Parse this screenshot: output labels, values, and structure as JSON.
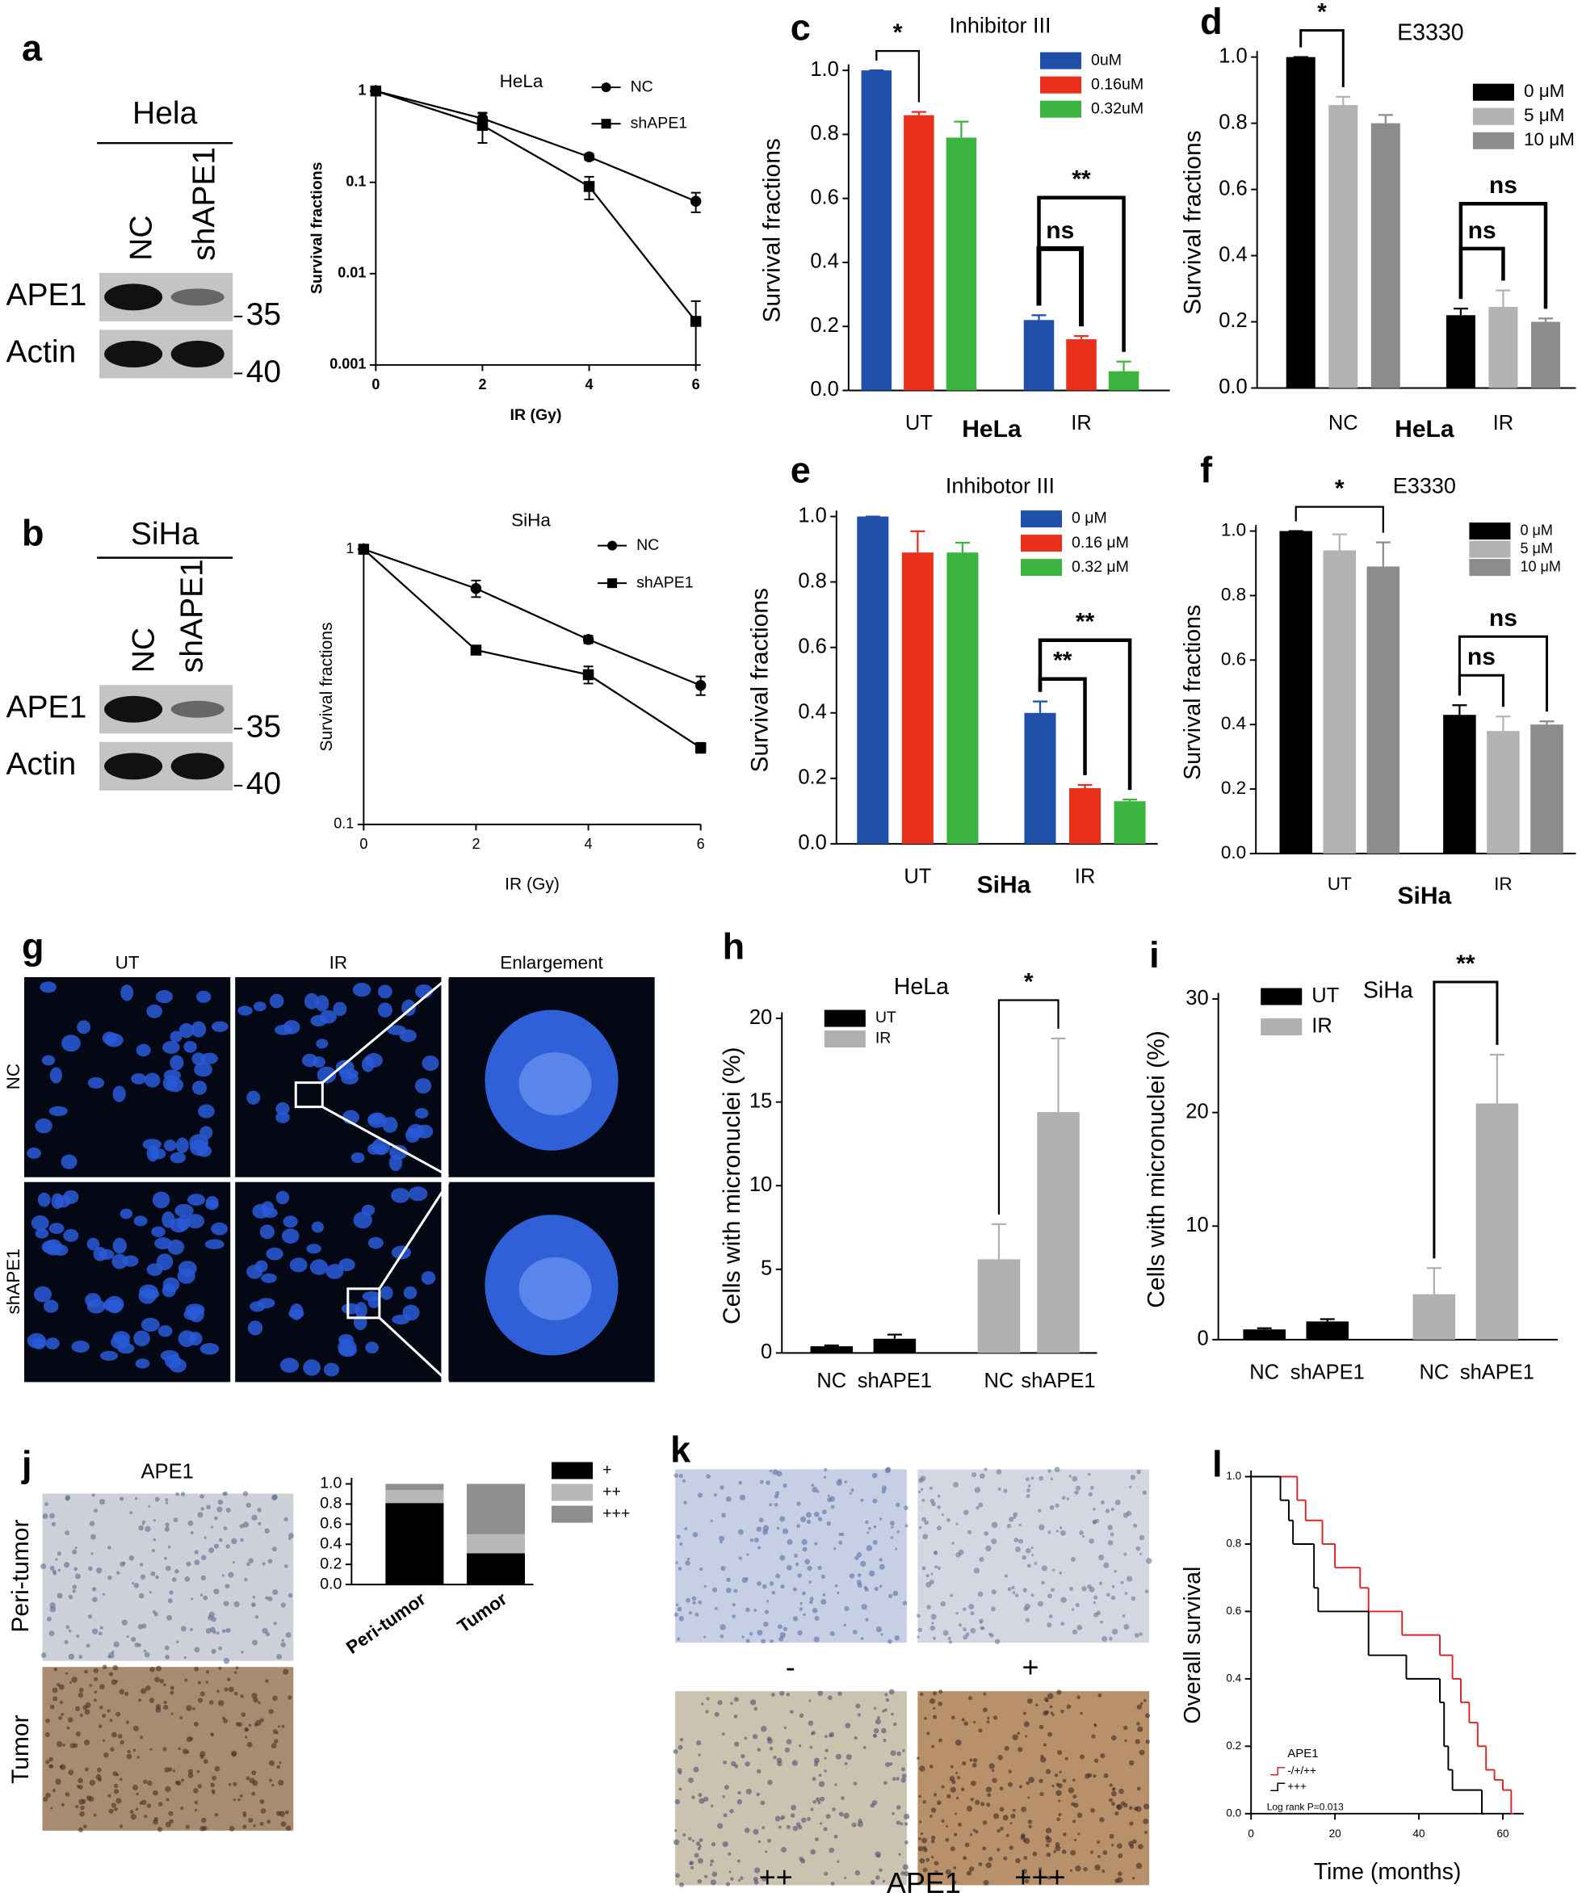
{
  "figure": {
    "panel_letters": [
      "a",
      "b",
      "c",
      "d",
      "e",
      "f",
      "g",
      "h",
      "i",
      "j",
      "k",
      "l"
    ],
    "blot_a": {
      "cell_line": "Hela",
      "lanes": [
        "NC",
        "shAPE1"
      ],
      "proteins": [
        "APE1",
        "Actin"
      ],
      "markers": [
        "35",
        "40"
      ]
    },
    "blot_b": {
      "cell_line": "SiHa",
      "lanes": [
        "NC",
        "shAPE1"
      ],
      "proteins": [
        "APE1",
        "Actin"
      ],
      "markers": [
        "35",
        "40"
      ]
    },
    "micrographs_g": {
      "columns": [
        "UT",
        "IR",
        "Enlargement"
      ],
      "rows": [
        "NC",
        "shAPE1"
      ]
    },
    "ihc_j": {
      "title": "APE1",
      "rows": [
        "Peri-tumor",
        "Tumor"
      ]
    },
    "ihc_k": {
      "grades": [
        "-",
        "+",
        "++",
        "+++"
      ],
      "label": "APE1"
    }
  },
  "chart_data": [
    {
      "type": "line",
      "title": "HeLa",
      "xlabel": "IR (Gy)",
      "ylabel": "Survival fractions",
      "x": [
        0,
        2,
        4,
        6
      ],
      "xlim": [
        0,
        6
      ],
      "xticks": [
        0,
        2,
        4,
        6
      ],
      "log_y": true,
      "ylim": [
        0.001,
        1
      ],
      "yticks": [
        1,
        0.1,
        0.01,
        0.001
      ],
      "series": [
        {
          "name": "NC",
          "color": "#000000",
          "marker": "circle",
          "values": [
            1,
            0.5,
            0.19,
            0.062
          ],
          "errors": [
            0,
            0.08,
            0.015,
            0.015
          ]
        },
        {
          "name": "shAPE1",
          "color": "#000000",
          "marker": "square",
          "values": [
            1,
            0.42,
            0.09,
            0.003
          ],
          "errors": [
            0,
            0.15,
            0.025,
            0.002
          ]
        }
      ]
    },
    {
      "type": "line",
      "title": "SiHa",
      "xlabel": "IR (Gy)",
      "ylabel": "Survival fractions",
      "x": [
        0,
        2,
        4,
        6
      ],
      "xlim": [
        0,
        6
      ],
      "xticks": [
        0,
        2,
        4,
        6
      ],
      "log_y": true,
      "ylim": [
        0.1,
        1
      ],
      "yticks": [
        1,
        0.1
      ],
      "series": [
        {
          "name": "NC",
          "color": "#000000",
          "marker": "circle",
          "values": [
            1,
            0.72,
            0.47,
            0.32
          ],
          "errors": [
            0,
            0.05,
            0.015,
            0.025
          ]
        },
        {
          "name": "shAPE1",
          "color": "#000000",
          "marker": "square",
          "values": [
            1,
            0.43,
            0.35,
            0.19
          ],
          "errors": [
            0,
            0.015,
            0.025,
            0.008
          ]
        }
      ]
    },
    {
      "type": "bar",
      "title": "Inhibitor III",
      "xlabel": "HeLa",
      "ylabel": "Survival fractions",
      "categories": [
        "UT",
        "IR"
      ],
      "ylim": [
        0,
        1
      ],
      "yticks": [
        {
          "value": 0,
          "label": "0.0"
        },
        0.2,
        0.4,
        0.6,
        0.8,
        {
          "value": 1,
          "label": "1.0"
        }
      ],
      "series": [
        {
          "name": "0uM",
          "color": "#1f4fa8",
          "values": [
            1.0,
            0.22
          ],
          "errors": [
            0,
            0.015
          ]
        },
        {
          "name": "0.16uM",
          "color": "#e8301c",
          "values": [
            0.86,
            0.16
          ],
          "errors": [
            0.01,
            0.01
          ]
        },
        {
          "name": "0.32uM",
          "color": "#3cb540",
          "values": [
            0.79,
            0.06
          ],
          "errors": [
            0.05,
            0.03
          ]
        }
      ],
      "annotations": [
        "*",
        "ns",
        "**"
      ]
    },
    {
      "type": "bar",
      "title": "E3330",
      "xlabel": "HeLa",
      "ylabel": "Survival fractions",
      "categories": [
        "NC",
        "IR"
      ],
      "ylim": [
        0,
        1
      ],
      "yticks": [
        {
          "value": 0,
          "label": "0.0"
        },
        0.2,
        0.4,
        0.6,
        0.8,
        {
          "value": 1,
          "label": "1.0"
        }
      ],
      "series": [
        {
          "name": "0 μM",
          "color": "#000000",
          "values": [
            1.0,
            0.22
          ],
          "errors": [
            0,
            0.02
          ]
        },
        {
          "name": "5 μM",
          "color": "#b3b3b3",
          "values": [
            0.855,
            0.245
          ],
          "errors": [
            0.025,
            0.05
          ]
        },
        {
          "name": "10 μM",
          "color": "#8c8c8c",
          "values": [
            0.8,
            0.2
          ],
          "errors": [
            0.025,
            0.01
          ]
        }
      ],
      "annotations": [
        "*",
        "ns",
        "ns"
      ]
    },
    {
      "type": "bar",
      "title": "Inhibotor III",
      "xlabel": "SiHa",
      "ylabel": "Survival fractions",
      "categories": [
        "UT",
        "IR"
      ],
      "ylim": [
        0,
        1
      ],
      "yticks": [
        {
          "value": 0,
          "label": "0.0"
        },
        0.2,
        0.4,
        0.6,
        0.8,
        {
          "value": 1,
          "label": "1.0"
        }
      ],
      "series": [
        {
          "name": "0 μM",
          "color": "#1f4fa8",
          "values": [
            1.0,
            0.4
          ],
          "errors": [
            0,
            0.035
          ]
        },
        {
          "name": "0.16 μM",
          "color": "#e8301c",
          "values": [
            0.89,
            0.17
          ],
          "errors": [
            0.065,
            0.01
          ]
        },
        {
          "name": "0.32 μM",
          "color": "#3cb540",
          "values": [
            0.89,
            0.13
          ],
          "errors": [
            0.03,
            0.005
          ]
        }
      ],
      "annotations": [
        "**",
        "**"
      ]
    },
    {
      "type": "bar",
      "title": "E3330",
      "xlabel": "SiHa",
      "ylabel": "Survival fractions",
      "categories": [
        "UT",
        "IR"
      ],
      "ylim": [
        0,
        1
      ],
      "yticks": [
        {
          "value": 0,
          "label": "0.0"
        },
        0.2,
        0.4,
        0.6,
        0.8,
        {
          "value": 1,
          "label": "1.0"
        }
      ],
      "series": [
        {
          "name": "0 μM",
          "color": "#000000",
          "values": [
            1.0,
            0.43
          ],
          "errors": [
            0,
            0.03
          ]
        },
        {
          "name": "5 μM",
          "color": "#b3b3b3",
          "values": [
            0.94,
            0.38
          ],
          "errors": [
            0.05,
            0.045
          ]
        },
        {
          "name": "10 μM",
          "color": "#8c8c8c",
          "values": [
            0.89,
            0.4
          ],
          "errors": [
            0.075,
            0.01
          ]
        }
      ],
      "annotations": [
        "*",
        "ns",
        "ns"
      ]
    },
    {
      "type": "bar",
      "title": "HeLa",
      "ylabel": "Cells with micronuclei (%)",
      "categories": [
        "NC",
        "shAPE1",
        "NC",
        "shAPE1"
      ],
      "ylim": [
        0,
        20
      ],
      "yticks": [
        0,
        5,
        10,
        15,
        20
      ],
      "series": [
        {
          "name": "UT",
          "color": "#000000",
          "values": [
            0.4,
            0.85,
            null,
            null
          ],
          "errors": [
            0.05,
            0.25,
            null,
            null
          ]
        },
        {
          "name": "IR",
          "color": "#b0b0b0",
          "values": [
            null,
            null,
            5.6,
            14.4
          ],
          "errors": [
            null,
            null,
            2.1,
            4.4
          ]
        }
      ],
      "annotations": [
        "*"
      ]
    },
    {
      "type": "bar",
      "title": "SiHa",
      "ylabel": "Cells with micronuclei (%)",
      "categories": [
        "NC",
        "shAPE1",
        "NC",
        "shAPE1"
      ],
      "ylim": [
        0,
        30
      ],
      "yticks": [
        0,
        10,
        20,
        30
      ],
      "series": [
        {
          "name": "UT",
          "color": "#000000",
          "values": [
            0.9,
            1.6,
            null,
            null
          ],
          "errors": [
            0.1,
            0.2,
            null,
            null
          ]
        },
        {
          "name": "IR",
          "color": "#b0b0b0",
          "values": [
            null,
            null,
            4.0,
            20.8
          ],
          "errors": [
            null,
            null,
            2.3,
            4.3
          ]
        }
      ],
      "annotations": [
        "**"
      ]
    },
    {
      "type": "bar",
      "stacked": true,
      "categories": [
        "Peri-tumor",
        "Tumor"
      ],
      "ylim": [
        0,
        1
      ],
      "yticks": [
        {
          "value": 0,
          "label": "0.0"
        },
        0.2,
        0.4,
        0.6,
        0.8,
        {
          "value": 1,
          "label": "1.0"
        }
      ],
      "series": [
        {
          "name": "+",
          "color": "#000000",
          "values": [
            0.81,
            0.31
          ]
        },
        {
          "name": "++",
          "color": "#b8b8b8",
          "values": [
            0.13,
            0.19
          ]
        },
        {
          "name": "+++",
          "color": "#8e8e8e",
          "values": [
            0.06,
            0.5
          ]
        }
      ]
    },
    {
      "type": "line",
      "step": true,
      "xlabel": "Time (months)",
      "ylabel": "Overall survival",
      "xlim": [
        0,
        65
      ],
      "xticks": [
        0,
        20,
        40,
        60
      ],
      "ylim": [
        0,
        1
      ],
      "yticks": [
        {
          "value": 0,
          "label": "0.0"
        },
        0.2,
        0.4,
        0.6,
        0.8,
        {
          "value": 1,
          "label": "1.0"
        }
      ],
      "legend_title": "APE1",
      "annotation": "Log rank P=0.013",
      "series": [
        {
          "name": "-/+/++",
          "color": "#d62728",
          "x": [
            0,
            11,
            13,
            17,
            20,
            26,
            28,
            36,
            45,
            48,
            50,
            52,
            54,
            56,
            58,
            60,
            62
          ],
          "values": [
            1.0,
            0.93,
            0.87,
            0.8,
            0.73,
            0.67,
            0.6,
            0.53,
            0.47,
            0.4,
            0.33,
            0.27,
            0.2,
            0.13,
            0.1,
            0.07,
            0.0
          ]
        },
        {
          "name": "+++",
          "color": "#000000",
          "x": [
            0,
            7,
            9,
            10,
            15,
            16,
            28,
            37,
            45,
            46,
            47,
            48,
            55
          ],
          "values": [
            1.0,
            0.93,
            0.87,
            0.8,
            0.67,
            0.6,
            0.47,
            0.4,
            0.33,
            0.2,
            0.13,
            0.07,
            0.0
          ]
        }
      ]
    }
  ]
}
